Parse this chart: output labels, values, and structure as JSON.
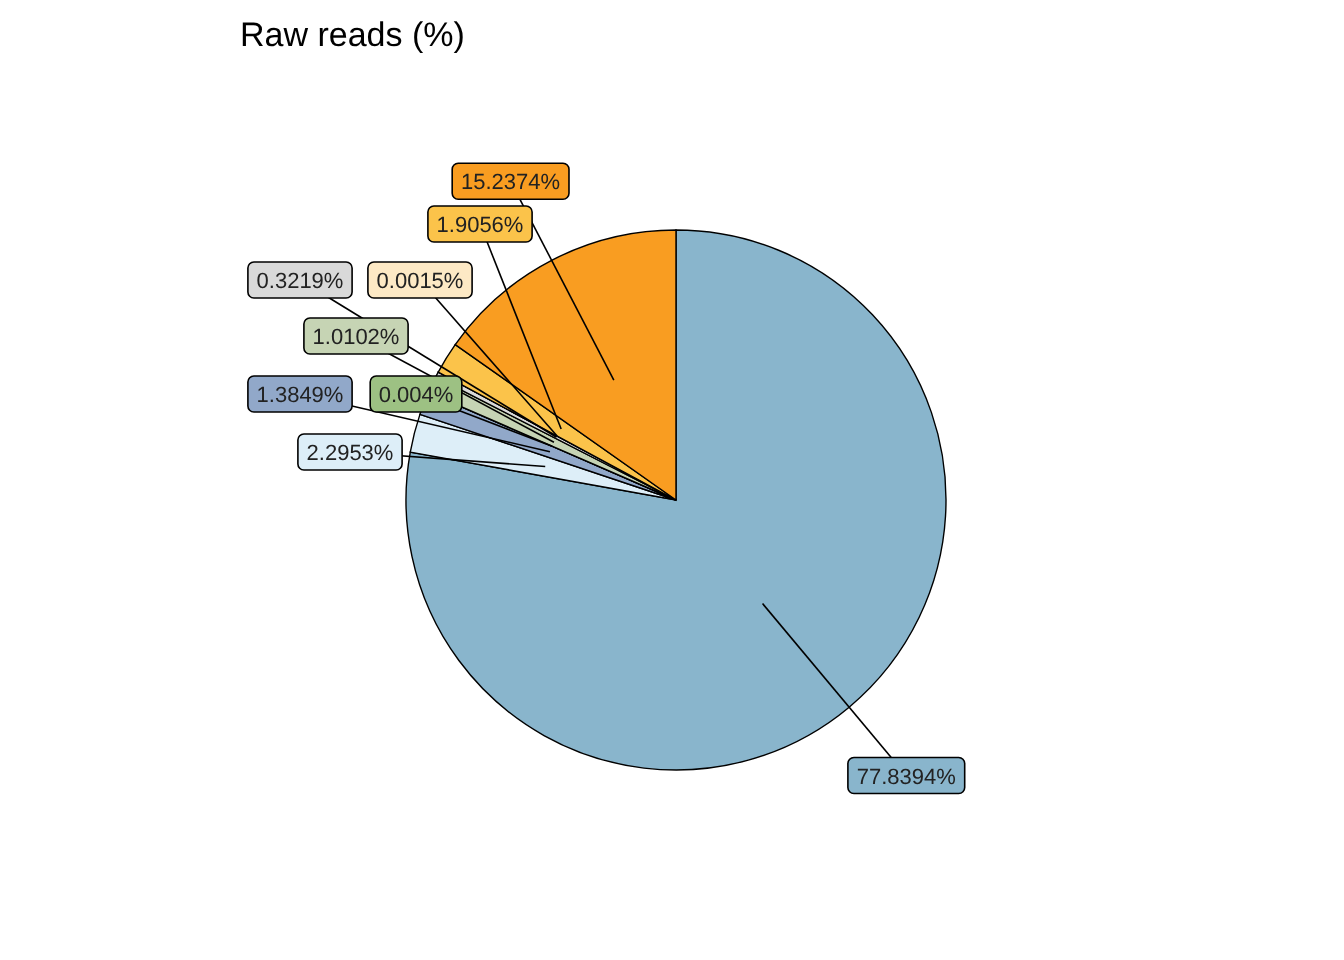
{
  "chart_data": {
    "type": "pie",
    "title": "Raw reads (%)",
    "categories": [
      null,
      null,
      null,
      null,
      null,
      null,
      null,
      null,
      null
    ],
    "values": [
      77.8394,
      2.2953,
      1.3849,
      0.004,
      1.0102,
      0.3219,
      0.0015,
      1.9056,
      15.2374
    ],
    "colors": [
      "#89b5cc",
      "#ddeef8",
      "#91a8c9",
      "#9dc183",
      "#c6d4b4",
      "#d9d9d9",
      "#fde9c5",
      "#fbc34a",
      "#f99d21"
    ],
    "value_labels": [
      "77.8394%",
      "2.2953%",
      "1.3849%",
      "0.004%",
      "1.0102%",
      "0.3219%",
      "0.0015%",
      "1.9056%",
      "15.2374%"
    ]
  }
}
